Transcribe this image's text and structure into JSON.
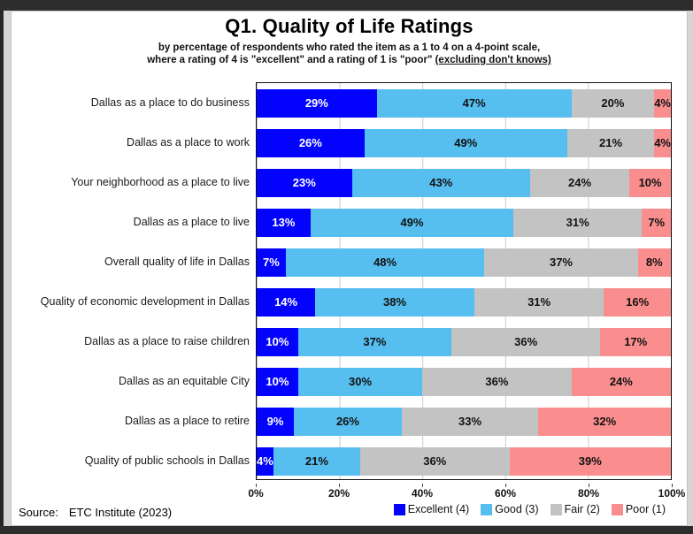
{
  "header": {
    "title": "Q1. Quality of Life Ratings",
    "subtitle_line1": "by percentage of respondents who rated the item as a 1 to 4 on a 4-point scale,",
    "subtitle_line2_prefix": "where a rating of 4 is \"excellent\" and a rating of 1 is \"poor\" ",
    "subtitle_line2_underlined": "(excluding don't knows)"
  },
  "chart_data": {
    "type": "bar",
    "stacked": true,
    "orientation": "horizontal",
    "title": "Q1. Quality of Life Ratings",
    "categories": [
      "Dallas as a place to do business",
      "Dallas as a place to work",
      "Your neighborhood as a place to live",
      "Dallas as a place to live",
      "Overall quality of life in Dallas",
      "Quality of economic development in Dallas",
      "Dallas as a place to raise children",
      "Dallas as an equitable City",
      "Dallas as a place to retire",
      "Quality of public schools in Dallas"
    ],
    "series": [
      {
        "name": "Excellent (4)",
        "color": "#0202fe",
        "text_color": "#ffffff",
        "values": [
          29,
          26,
          23,
          13,
          7,
          14,
          10,
          10,
          9,
          4
        ]
      },
      {
        "name": "Good (3)",
        "color": "#57bef0",
        "text_color": "#111111",
        "values": [
          47,
          49,
          43,
          49,
          48,
          38,
          37,
          30,
          26,
          21
        ]
      },
      {
        "name": "Fair (2)",
        "color": "#c3c3c3",
        "text_color": "#111111",
        "values": [
          20,
          21,
          24,
          31,
          37,
          31,
          36,
          36,
          33,
          36
        ]
      },
      {
        "name": "Poor (1)",
        "color": "#fa8e8e",
        "text_color": "#111111",
        "values": [
          4,
          4,
          10,
          7,
          8,
          16,
          17,
          24,
          32,
          39
        ]
      }
    ],
    "value_suffix": "%",
    "x_ticks": [
      "0%",
      "20%",
      "40%",
      "60%",
      "80%",
      "100%"
    ],
    "xlim": [
      0,
      100
    ],
    "grid": true,
    "gridline_color": "#c9c9c9",
    "legend_position": "bottom-right"
  },
  "footer": {
    "source_label": "Source:",
    "source_text": "ETC Institute (2023)"
  }
}
